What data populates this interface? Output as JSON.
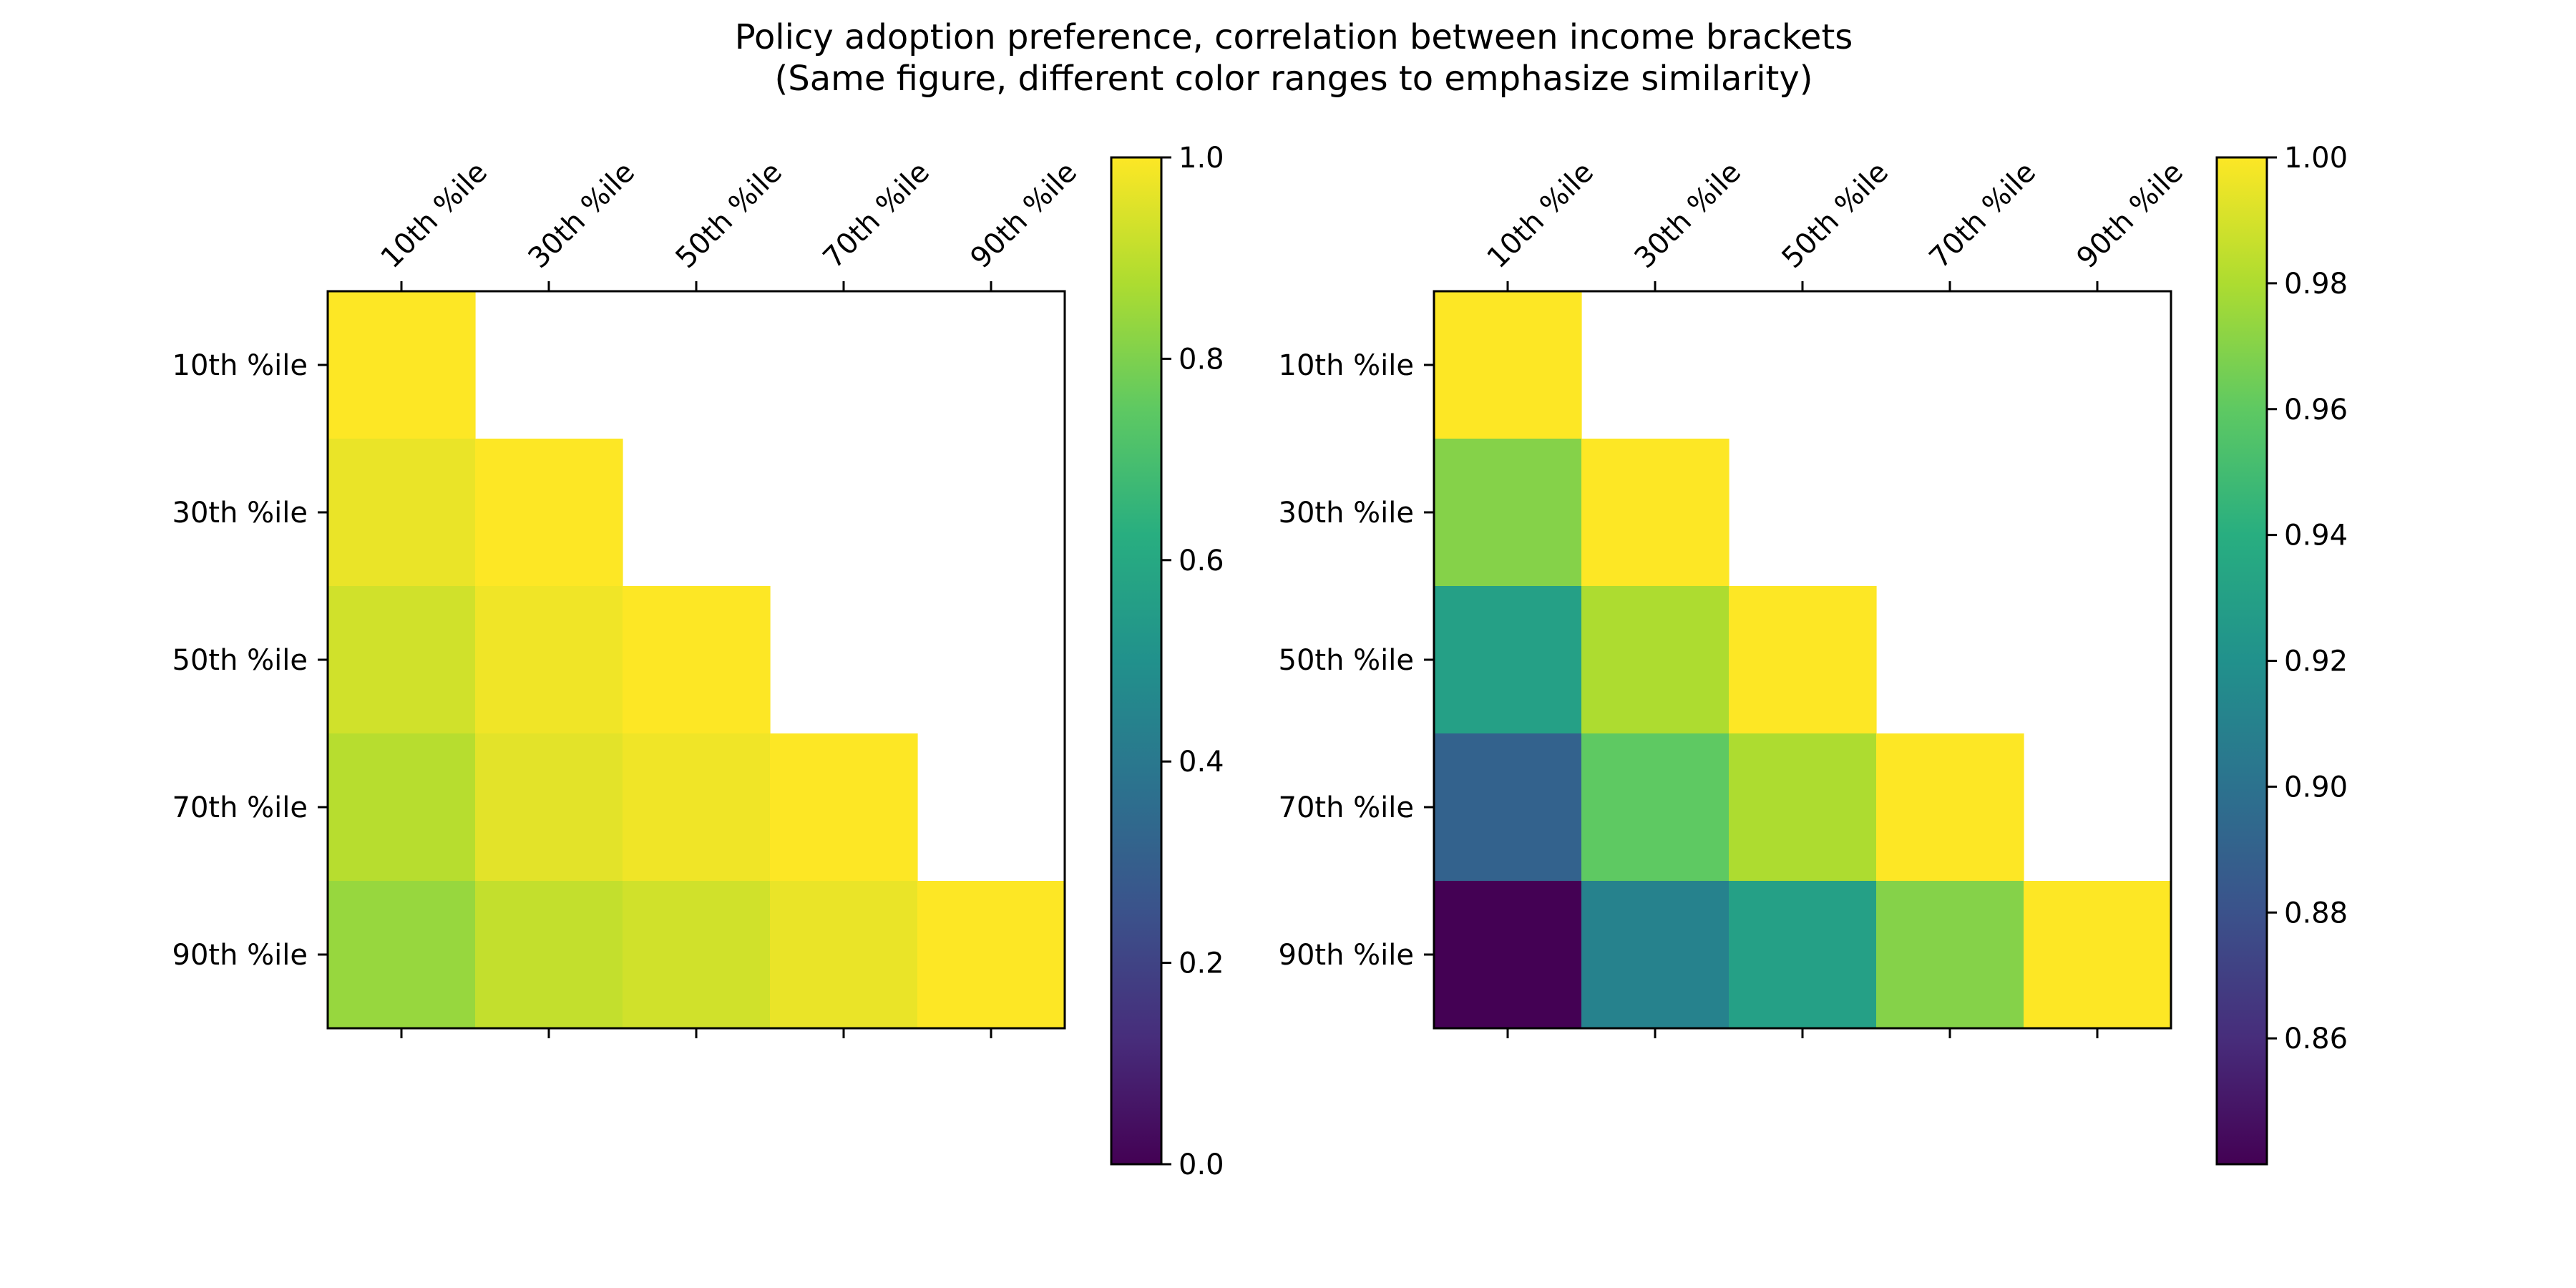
{
  "figure": {
    "title_line1": "Policy adoption preference, correlation between income brackets",
    "title_line2": "(Same figure, different color ranges to emphasize similarity)"
  },
  "chart_data": [
    {
      "type": "heatmap",
      "categories": [
        "10th %ile",
        "30th %ile",
        "50th %ile",
        "70th %ile",
        "90th %ile"
      ],
      "colormap": "viridis",
      "matrix": [
        [
          1.0,
          null,
          null,
          null,
          null
        ],
        [
          0.97,
          1.0,
          null,
          null,
          null
        ],
        [
          0.93,
          0.98,
          1.0,
          null,
          null
        ],
        [
          0.89,
          0.96,
          0.98,
          1.0,
          null
        ],
        [
          0.84,
          0.91,
          0.93,
          0.97,
          1.0
        ]
      ],
      "colorbar": {
        "vmin": 0.0,
        "vmax": 1.0,
        "ticks": [
          0.0,
          0.2,
          0.4,
          0.6,
          0.8,
          1.0
        ],
        "tick_labels": [
          "0.0",
          "0.2",
          "0.4",
          "0.6",
          "0.8",
          "1.0"
        ]
      }
    },
    {
      "type": "heatmap",
      "categories": [
        "10th %ile",
        "30th %ile",
        "50th %ile",
        "70th %ile",
        "90th %ile"
      ],
      "colormap": "viridis",
      "matrix": [
        [
          1.0,
          null,
          null,
          null,
          null
        ],
        [
          0.97,
          1.0,
          null,
          null,
          null
        ],
        [
          0.93,
          0.98,
          1.0,
          null,
          null
        ],
        [
          0.89,
          0.96,
          0.98,
          1.0,
          null
        ],
        [
          0.84,
          0.91,
          0.93,
          0.97,
          1.0
        ]
      ],
      "colorbar": {
        "vmin": 0.84,
        "vmax": 1.0,
        "ticks": [
          0.86,
          0.88,
          0.9,
          0.92,
          0.94,
          0.96,
          0.98,
          1.0
        ],
        "tick_labels": [
          "0.86",
          "0.88",
          "0.90",
          "0.92",
          "0.94",
          "0.96",
          "0.98",
          "1.00"
        ]
      }
    }
  ]
}
